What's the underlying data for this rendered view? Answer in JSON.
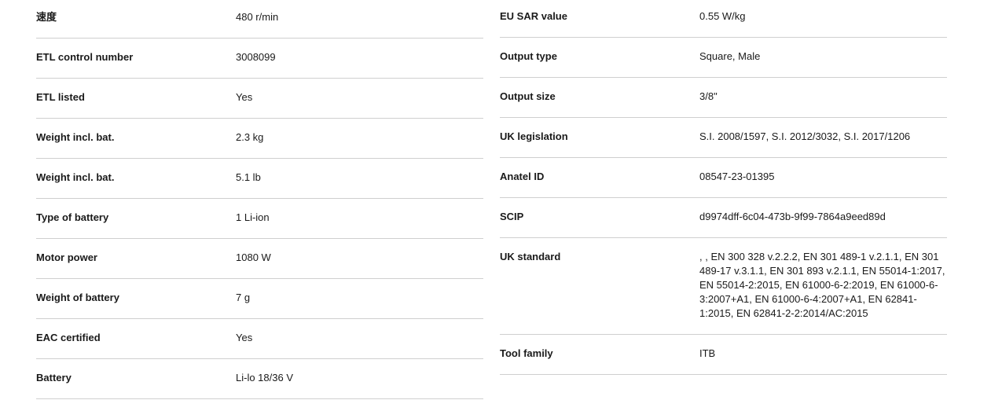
{
  "left_specs": [
    {
      "label": "速度",
      "value": "480 r/min"
    },
    {
      "label": "ETL control number",
      "value": "3008099"
    },
    {
      "label": "ETL listed",
      "value": "Yes"
    },
    {
      "label": "Weight incl. bat.",
      "value": "2.3 kg"
    },
    {
      "label": "Weight incl. bat.",
      "value": "5.1 lb"
    },
    {
      "label": "Type of battery",
      "value": "1 Li-ion"
    },
    {
      "label": "Motor power",
      "value": "1080 W"
    },
    {
      "label": "Weight of battery",
      "value": "7 g"
    },
    {
      "label": "EAC certified",
      "value": "Yes"
    },
    {
      "label": "Battery",
      "value": "Li-lo 18/36 V"
    }
  ],
  "right_specs": [
    {
      "label": "EU SAR value",
      "value": "0.55 W/kg"
    },
    {
      "label": "Output type",
      "value": "Square, Male"
    },
    {
      "label": "Output size",
      "value": "3/8\""
    },
    {
      "label": "UK legislation",
      "value": "S.I. 2008/1597, S.I. 2012/3032, S.I. 2017/1206"
    },
    {
      "label": "Anatel ID",
      "value": "08547-23-01395"
    },
    {
      "label": "SCIP",
      "value": "d9974dff-6c04-473b-9f99-7864a9eed89d"
    },
    {
      "label": "UK standard",
      "value": ", , EN 300 328 v.2.2.2, EN 301 489-1 v.2.1.1, EN 301 489-17 v.3.1.1, EN 301 893 v.2.1.1, EN 55014-1:2017, EN 55014-2:2015, EN 61000-6-2:2019, EN 61000-6-3:2007+A1, EN 61000-6-4:2007+A1, EN 62841-1:2015, EN 62841-2-2:2014/AC:2015"
    },
    {
      "label": "Tool family",
      "value": "ITB"
    }
  ]
}
